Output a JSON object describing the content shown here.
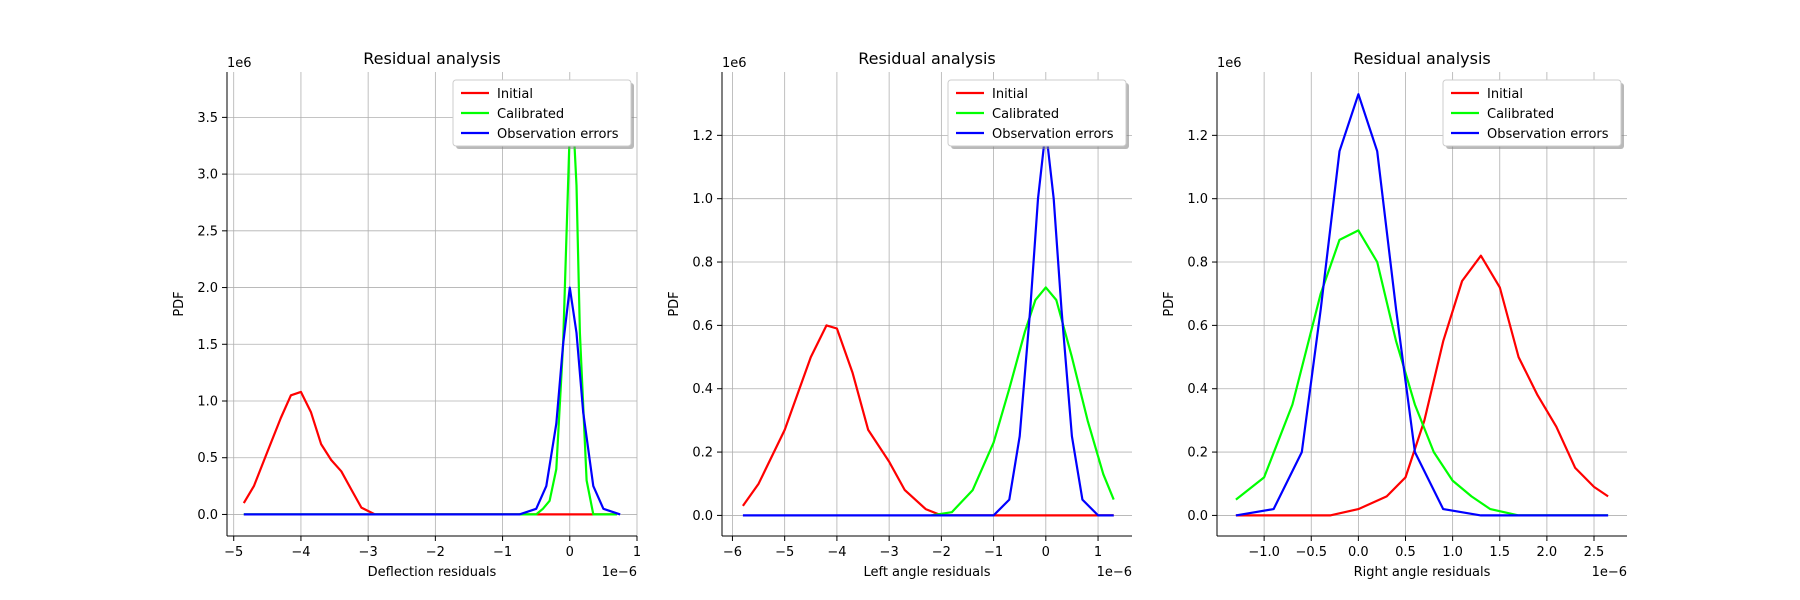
{
  "chart_data": [
    {
      "type": "line",
      "title": "Residual analysis",
      "xlabel": "Deflection residuals",
      "ylabel": "PDF",
      "x_offset_text": "1e−6",
      "y_offset_text": "1e6",
      "xlim": [
        -5.1,
        1.0
      ],
      "ylim": [
        -0.19,
        3.9
      ],
      "xticks": [
        -5,
        -4,
        -3,
        -2,
        -1,
        0,
        1
      ],
      "xtick_labels": [
        "−5",
        "−4",
        "−3",
        "−2",
        "−1",
        "0",
        "1"
      ],
      "yticks": [
        0.0,
        0.5,
        1.0,
        1.5,
        2.0,
        2.5,
        3.0,
        3.5
      ],
      "ytick_labels": [
        "0.0",
        "0.5",
        "1.0",
        "1.5",
        "2.0",
        "2.5",
        "3.0",
        "3.5"
      ],
      "grid": true,
      "legend_position": "top-right",
      "series": [
        {
          "name": "Initial",
          "color": "#ff0000",
          "points": [
            [
              -4.85,
              0.1
            ],
            [
              -4.7,
              0.25
            ],
            [
              -4.5,
              0.55
            ],
            [
              -4.3,
              0.85
            ],
            [
              -4.15,
              1.05
            ],
            [
              -4.0,
              1.08
            ],
            [
              -3.85,
              0.9
            ],
            [
              -3.7,
              0.62
            ],
            [
              -3.55,
              0.48
            ],
            [
              -3.4,
              0.38
            ],
            [
              -3.25,
              0.22
            ],
            [
              -3.1,
              0.06
            ],
            [
              -2.9,
              0.0
            ],
            [
              0.7,
              0.0
            ]
          ]
        },
        {
          "name": "Calibrated",
          "color": "#00ff00",
          "points": [
            [
              -4.85,
              0.0
            ],
            [
              -0.5,
              0.0
            ],
            [
              -0.4,
              0.05
            ],
            [
              -0.3,
              0.12
            ],
            [
              -0.2,
              0.4
            ],
            [
              -0.1,
              1.5
            ],
            [
              0.0,
              3.4
            ],
            [
              0.05,
              3.5
            ],
            [
              0.1,
              2.9
            ],
            [
              0.15,
              1.6
            ],
            [
              0.25,
              0.3
            ],
            [
              0.35,
              0.0
            ],
            [
              0.7,
              0.0
            ]
          ]
        },
        {
          "name": "Observation errors",
          "color": "#0000ff",
          "points": [
            [
              -4.85,
              0.0
            ],
            [
              -0.75,
              0.0
            ],
            [
              -0.5,
              0.05
            ],
            [
              -0.35,
              0.25
            ],
            [
              -0.2,
              0.8
            ],
            [
              -0.1,
              1.5
            ],
            [
              0.0,
              2.0
            ],
            [
              0.1,
              1.6
            ],
            [
              0.2,
              0.9
            ],
            [
              0.35,
              0.25
            ],
            [
              0.5,
              0.05
            ],
            [
              0.75,
              0.0
            ]
          ]
        }
      ]
    },
    {
      "type": "line",
      "title": "Residual analysis",
      "xlabel": "Left angle residuals",
      "ylabel": "PDF",
      "x_offset_text": "1e−6",
      "y_offset_text": "1e6",
      "xlim": [
        -6.2,
        1.65
      ],
      "ylim": [
        -0.065,
        1.4
      ],
      "xticks": [
        -6,
        -5,
        -4,
        -3,
        -2,
        -1,
        0,
        1
      ],
      "xtick_labels": [
        "−6",
        "−5",
        "−4",
        "−3",
        "−2",
        "−1",
        "0",
        "1"
      ],
      "yticks": [
        0.0,
        0.2,
        0.4,
        0.6,
        0.8,
        1.0,
        1.2
      ],
      "ytick_labels": [
        "0.0",
        "0.2",
        "0.4",
        "0.6",
        "0.8",
        "1.0",
        "1.2"
      ],
      "grid": true,
      "legend_position": "top-right",
      "series": [
        {
          "name": "Initial",
          "color": "#ff0000",
          "points": [
            [
              -5.8,
              0.03
            ],
            [
              -5.5,
              0.1
            ],
            [
              -5.0,
              0.27
            ],
            [
              -4.5,
              0.5
            ],
            [
              -4.2,
              0.6
            ],
            [
              -4.0,
              0.59
            ],
            [
              -3.7,
              0.45
            ],
            [
              -3.4,
              0.27
            ],
            [
              -3.0,
              0.17
            ],
            [
              -2.7,
              0.08
            ],
            [
              -2.3,
              0.02
            ],
            [
              -2.0,
              0.0
            ],
            [
              1.3,
              0.0
            ]
          ]
        },
        {
          "name": "Calibrated",
          "color": "#00ff00",
          "points": [
            [
              -2.2,
              0.0
            ],
            [
              -1.8,
              0.01
            ],
            [
              -1.4,
              0.08
            ],
            [
              -1.0,
              0.23
            ],
            [
              -0.7,
              0.4
            ],
            [
              -0.4,
              0.58
            ],
            [
              -0.2,
              0.68
            ],
            [
              0.0,
              0.72
            ],
            [
              0.2,
              0.68
            ],
            [
              0.5,
              0.5
            ],
            [
              0.8,
              0.3
            ],
            [
              1.1,
              0.13
            ],
            [
              1.3,
              0.05
            ]
          ]
        },
        {
          "name": "Observation errors",
          "color": "#0000ff",
          "points": [
            [
              -5.8,
              0.0
            ],
            [
              -1.0,
              0.0
            ],
            [
              -0.7,
              0.05
            ],
            [
              -0.5,
              0.25
            ],
            [
              -0.3,
              0.65
            ],
            [
              -0.15,
              1.0
            ],
            [
              0.0,
              1.22
            ],
            [
              0.15,
              1.0
            ],
            [
              0.3,
              0.65
            ],
            [
              0.5,
              0.25
            ],
            [
              0.7,
              0.05
            ],
            [
              1.0,
              0.0
            ],
            [
              1.3,
              0.0
            ]
          ]
        }
      ]
    },
    {
      "type": "line",
      "title": "Residual analysis",
      "xlabel": "Right angle residuals",
      "ylabel": "PDF",
      "x_offset_text": "1e−6",
      "y_offset_text": "1e6",
      "xlim": [
        -1.5,
        2.85
      ],
      "ylim": [
        -0.065,
        1.4
      ],
      "xticks": [
        -1.0,
        -0.5,
        0.0,
        0.5,
        1.0,
        1.5,
        2.0,
        2.5
      ],
      "xtick_labels": [
        "−1.0",
        "−0.5",
        "0.0",
        "0.5",
        "1.0",
        "1.5",
        "2.0",
        "2.5"
      ],
      "yticks": [
        0.0,
        0.2,
        0.4,
        0.6,
        0.8,
        1.0,
        1.2
      ],
      "ytick_labels": [
        "0.0",
        "0.2",
        "0.4",
        "0.6",
        "0.8",
        "1.0",
        "1.2"
      ],
      "grid": true,
      "legend_position": "top-right",
      "series": [
        {
          "name": "Initial",
          "color": "#ff0000",
          "points": [
            [
              -1.3,
              0.0
            ],
            [
              -0.3,
              0.0
            ],
            [
              0.0,
              0.02
            ],
            [
              0.3,
              0.06
            ],
            [
              0.5,
              0.12
            ],
            [
              0.7,
              0.3
            ],
            [
              0.9,
              0.55
            ],
            [
              1.1,
              0.74
            ],
            [
              1.3,
              0.82
            ],
            [
              1.5,
              0.72
            ],
            [
              1.7,
              0.5
            ],
            [
              1.9,
              0.38
            ],
            [
              2.1,
              0.28
            ],
            [
              2.3,
              0.15
            ],
            [
              2.5,
              0.09
            ],
            [
              2.65,
              0.06
            ]
          ]
        },
        {
          "name": "Calibrated",
          "color": "#00ff00",
          "points": [
            [
              -1.3,
              0.05
            ],
            [
              -1.0,
              0.12
            ],
            [
              -0.7,
              0.35
            ],
            [
              -0.4,
              0.7
            ],
            [
              -0.2,
              0.87
            ],
            [
              0.0,
              0.9
            ],
            [
              0.2,
              0.8
            ],
            [
              0.4,
              0.55
            ],
            [
              0.6,
              0.35
            ],
            [
              0.8,
              0.2
            ],
            [
              1.0,
              0.11
            ],
            [
              1.2,
              0.06
            ],
            [
              1.4,
              0.02
            ],
            [
              1.7,
              0.0
            ],
            [
              2.65,
              0.0
            ]
          ]
        },
        {
          "name": "Observation errors",
          "color": "#0000ff",
          "points": [
            [
              -1.3,
              0.0
            ],
            [
              -0.9,
              0.02
            ],
            [
              -0.6,
              0.2
            ],
            [
              -0.4,
              0.65
            ],
            [
              -0.2,
              1.15
            ],
            [
              0.0,
              1.33
            ],
            [
              0.2,
              1.15
            ],
            [
              0.4,
              0.65
            ],
            [
              0.6,
              0.2
            ],
            [
              0.9,
              0.02
            ],
            [
              1.3,
              0.0
            ],
            [
              2.65,
              0.0
            ]
          ]
        }
      ]
    }
  ]
}
